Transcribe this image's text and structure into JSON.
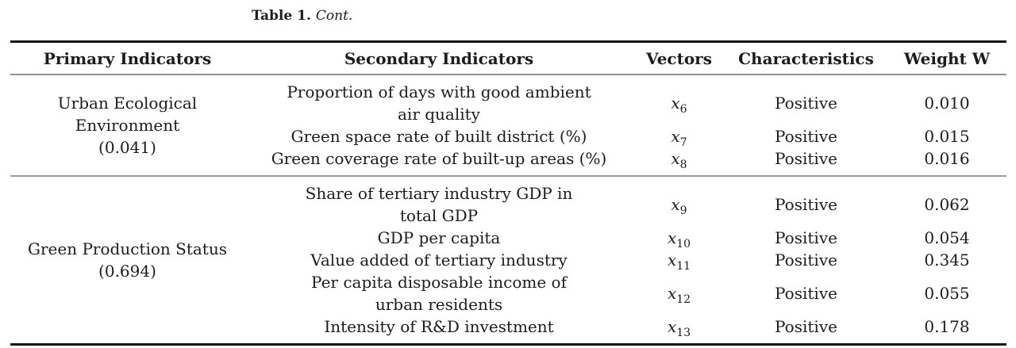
{
  "caption": {
    "label": "Table 1.",
    "cont": "Cont."
  },
  "table": {
    "columns": [
      "Primary Indicators",
      "Secondary Indicators",
      "Vectors",
      "Characteristics",
      "Weight W"
    ],
    "groups": [
      {
        "primary": "Urban Ecological\nEnvironment\n(0.041)",
        "rows": [
          {
            "secondary": "Proportion of days with good ambient\nair quality",
            "vector_base": "x",
            "vector_sub": "6",
            "characteristic": "Positive",
            "weight": "0.010"
          },
          {
            "secondary": "Green space rate of built district (%)",
            "vector_base": "x",
            "vector_sub": "7",
            "characteristic": "Positive",
            "weight": "0.015"
          },
          {
            "secondary": "Green coverage rate of built-up areas (%)",
            "vector_base": "x",
            "vector_sub": "8",
            "characteristic": "Positive",
            "weight": "0.016"
          }
        ]
      },
      {
        "primary": "Green Production Status\n(0.694)",
        "rows": [
          {
            "secondary": "Share of tertiary industry GDP in\ntotal GDP",
            "vector_base": "x",
            "vector_sub": "9",
            "characteristic": "Positive",
            "weight": "0.062"
          },
          {
            "secondary": "GDP per capita",
            "vector_base": "x",
            "vector_sub": "10",
            "characteristic": "Positive",
            "weight": "0.054"
          },
          {
            "secondary": "Value added of tertiary industry",
            "vector_base": "x",
            "vector_sub": "11",
            "characteristic": "Positive",
            "weight": "0.345"
          },
          {
            "secondary": "Per capita disposable income of\nurban residents",
            "vector_base": "x",
            "vector_sub": "12",
            "characteristic": "Positive",
            "weight": "0.055"
          },
          {
            "secondary": "Intensity of R&D investment",
            "vector_base": "x",
            "vector_sub": "13",
            "characteristic": "Positive",
            "weight": "0.178"
          }
        ]
      }
    ]
  }
}
